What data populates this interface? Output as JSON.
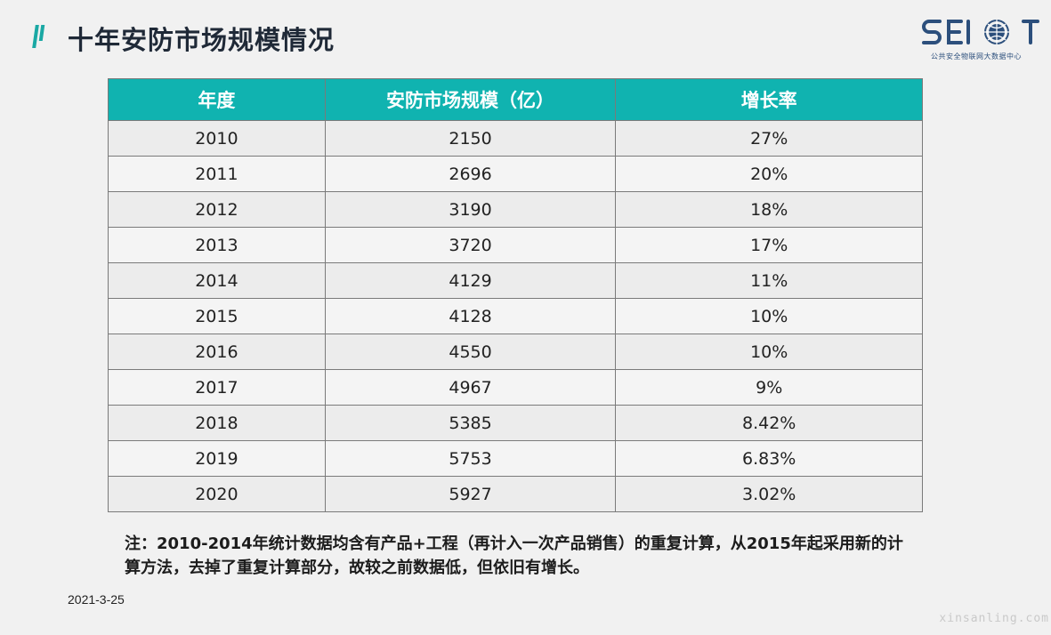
{
  "header": {
    "title": "十年安防市场规模情况",
    "logo_mark": "SEIOT",
    "logo_subtitle": "公共安全物联网大数据中心"
  },
  "colors": {
    "header_bg": "#10b3b0",
    "accent": "#1aa8a4",
    "logo": "#2c4f7c"
  },
  "table": {
    "columns": [
      "年度",
      "安防市场规模（亿）",
      "增长率"
    ],
    "rows": [
      [
        "2010",
        "2150",
        "27%"
      ],
      [
        "2011",
        "2696",
        "20%"
      ],
      [
        "2012",
        "3190",
        "18%"
      ],
      [
        "2013",
        "3720",
        "17%"
      ],
      [
        "2014",
        "4129",
        "11%"
      ],
      [
        "2015",
        "4128",
        "10%"
      ],
      [
        "2016",
        "4550",
        "10%"
      ],
      [
        "2017",
        "4967",
        "9%"
      ],
      [
        "2018",
        "5385",
        "8.42%"
      ],
      [
        "2019",
        "5753",
        "6.83%"
      ],
      [
        "2020",
        "5927",
        "3.02%"
      ]
    ]
  },
  "note": "注：2010-2014年统计数据均含有产品+工程（再计入一次产品销售）的重复计算，从2015年起采用新的计算方法，去掉了重复计算部分，故较之前数据低，但依旧有增长。",
  "footer": {
    "date": "2021-3-25",
    "watermark": "xinsanling.com"
  }
}
